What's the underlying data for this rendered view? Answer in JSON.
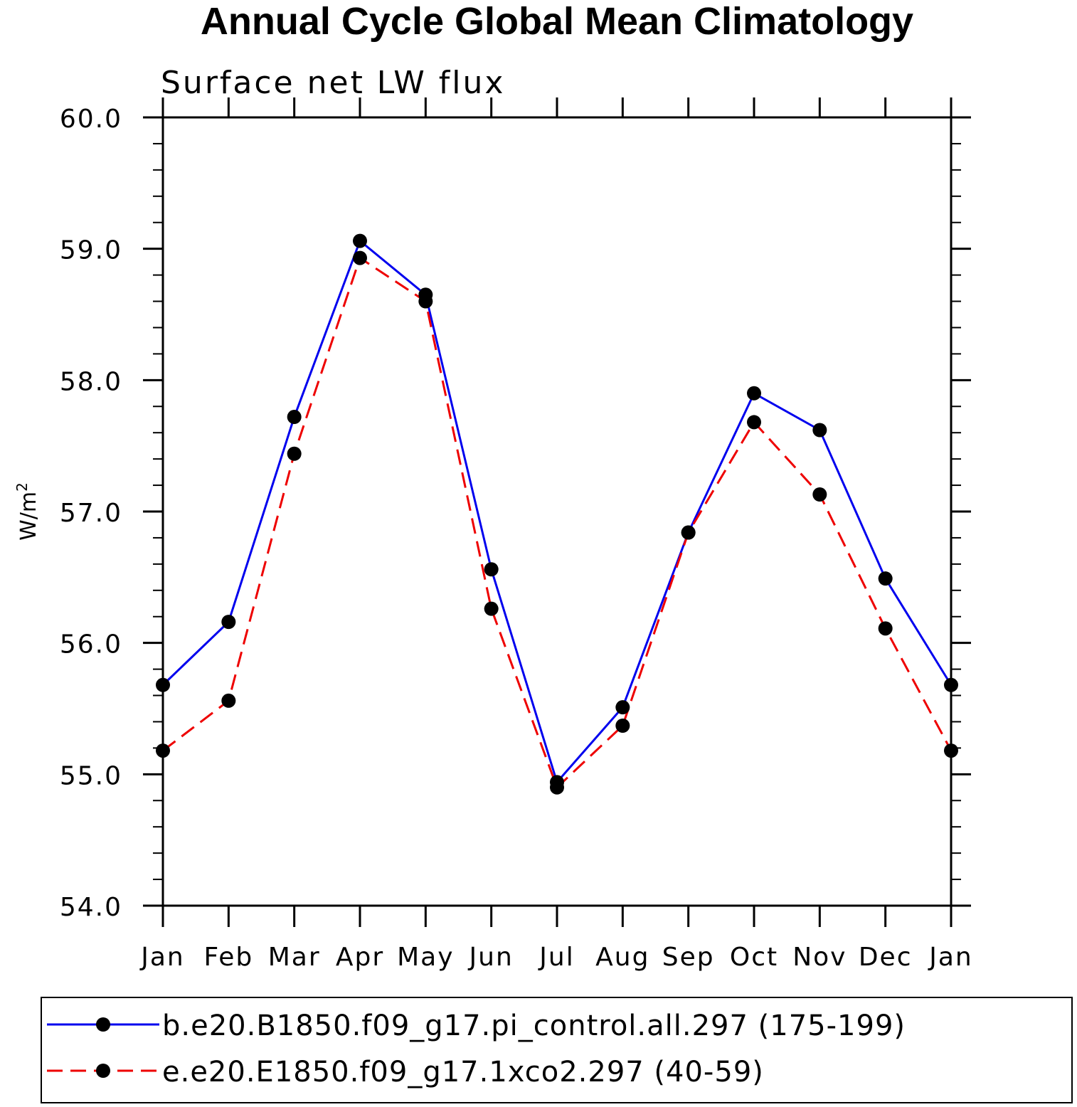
{
  "chart_data": {
    "type": "line",
    "title": "Annual Cycle Global Mean Climatology",
    "subtitle": "Surface net LW flux",
    "ylabel": "W/m",
    "ylabel_sup": "2",
    "xlabel": "",
    "categories": [
      "Jan",
      "Feb",
      "Mar",
      "Apr",
      "May",
      "Jun",
      "Jul",
      "Aug",
      "Sep",
      "Oct",
      "Nov",
      "Dec",
      "Jan"
    ],
    "ylim": [
      54.0,
      60.0
    ],
    "yticks": [
      54.0,
      55.0,
      56.0,
      57.0,
      58.0,
      59.0,
      60.0
    ],
    "ytick_labels": [
      "54.0",
      "55.0",
      "56.0",
      "57.0",
      "58.0",
      "59.0",
      "60.0"
    ],
    "grid": false,
    "legend_position": "bottom",
    "series": [
      {
        "name": "b.e20.B1850.f09_g17.pi_control.all.297 (175-199)",
        "color": "#0000ee",
        "dash": "solid",
        "values": [
          55.68,
          56.16,
          57.72,
          59.06,
          58.65,
          56.56,
          54.94,
          55.51,
          56.84,
          57.9,
          57.62,
          56.49,
          55.68
        ]
      },
      {
        "name": "e.e20.E1850.f09_g17.1xco2.297 (40-59)",
        "color": "#ee0000",
        "dash": "dashed",
        "values": [
          55.18,
          55.56,
          57.44,
          58.93,
          58.6,
          56.26,
          54.9,
          55.37,
          56.84,
          57.68,
          57.13,
          56.11,
          55.18
        ]
      }
    ]
  }
}
